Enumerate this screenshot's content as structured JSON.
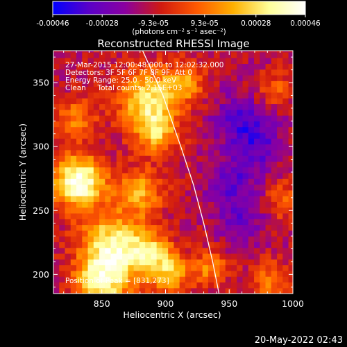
{
  "colorbar": {
    "tick_values": [
      -0.00046,
      -0.00028,
      -9.3e-05,
      9.3e-05,
      0.00028,
      0.00046
    ],
    "tick_labels": [
      "-0.00046",
      "-0.00028",
      "-9.3e-05",
      "9.3e-05",
      "0.00028",
      "0.00046"
    ],
    "unit_label": "(photons cm⁻² s⁻¹ asec⁻²)",
    "range": [
      -0.00046,
      0.00046
    ],
    "colormap_stops": [
      "#0000ff",
      "#5a00c8",
      "#8a00a0",
      "#d01a10",
      "#ff5a00",
      "#ffb000",
      "#ffff9a",
      "#ffffff"
    ]
  },
  "chart_data": {
    "type": "heatmap",
    "title": "Reconstructed RHESSI Image",
    "xlabel": "Heliocentric X (arcsec)",
    "ylabel": "Heliocentric Y (arcsec)",
    "xlim": [
      812,
      1000
    ],
    "ylim": [
      185,
      375
    ],
    "x_ticks": [
      850,
      900,
      950,
      1000
    ],
    "y_ticks": [
      200,
      250,
      300,
      350
    ],
    "info_lines": [
      "27-Mar-2015 12:00:48.000 to 12:02:32.000",
      "Detectors: 3F 5F 6F 7F 8F 9F, Att 0",
      "Energy Range: 25.0 - 50.0 keV",
      "Clean     Total counts: 2.15E+03"
    ],
    "peak_label": "Position of Peak = [831,273]",
    "peak": [
      831,
      273
    ],
    "grid": false,
    "limb_curve": {
      "points": [
        [
          882,
          375
        ],
        [
          898,
          340
        ],
        [
          912,
          300
        ],
        [
          922,
          270
        ],
        [
          930,
          240
        ],
        [
          937,
          210
        ],
        [
          942,
          185
        ]
      ]
    },
    "hot_spots": [
      {
        "x": 832,
        "y": 273,
        "sigma": 14,
        "amp": 1.0
      },
      {
        "x": 885,
        "y": 338,
        "sigma": 16,
        "amp": 0.7
      },
      {
        "x": 893,
        "y": 312,
        "sigma": 12,
        "amp": 0.55
      },
      {
        "x": 880,
        "y": 265,
        "sigma": 13,
        "amp": 0.5
      },
      {
        "x": 858,
        "y": 225,
        "sigma": 17,
        "amp": 0.72
      },
      {
        "x": 888,
        "y": 215,
        "sigma": 13,
        "amp": 0.62
      },
      {
        "x": 850,
        "y": 195,
        "sigma": 15,
        "amp": 0.78
      },
      {
        "x": 905,
        "y": 200,
        "sigma": 10,
        "amp": 0.5
      },
      {
        "x": 935,
        "y": 205,
        "sigma": 10,
        "amp": 0.4
      },
      {
        "x": 915,
        "y": 350,
        "sigma": 11,
        "amp": 0.45
      },
      {
        "x": 830,
        "y": 322,
        "sigma": 11,
        "amp": 0.4
      },
      {
        "x": 995,
        "y": 258,
        "sigma": 10,
        "amp": 0.35
      },
      {
        "x": 982,
        "y": 195,
        "sigma": 11,
        "amp": 0.35
      },
      {
        "x": 985,
        "y": 345,
        "sigma": 9,
        "amp": 0.3
      }
    ],
    "cold_spots": [
      {
        "x": 958,
        "y": 320,
        "sigma": 14,
        "amp": 0.55
      },
      {
        "x": 952,
        "y": 272,
        "sigma": 13,
        "amp": 0.5
      },
      {
        "x": 975,
        "y": 300,
        "sigma": 12,
        "amp": 0.45
      },
      {
        "x": 960,
        "y": 240,
        "sigma": 12,
        "amp": 0.4
      }
    ]
  },
  "timestamp": "20-May-2022 02:43"
}
